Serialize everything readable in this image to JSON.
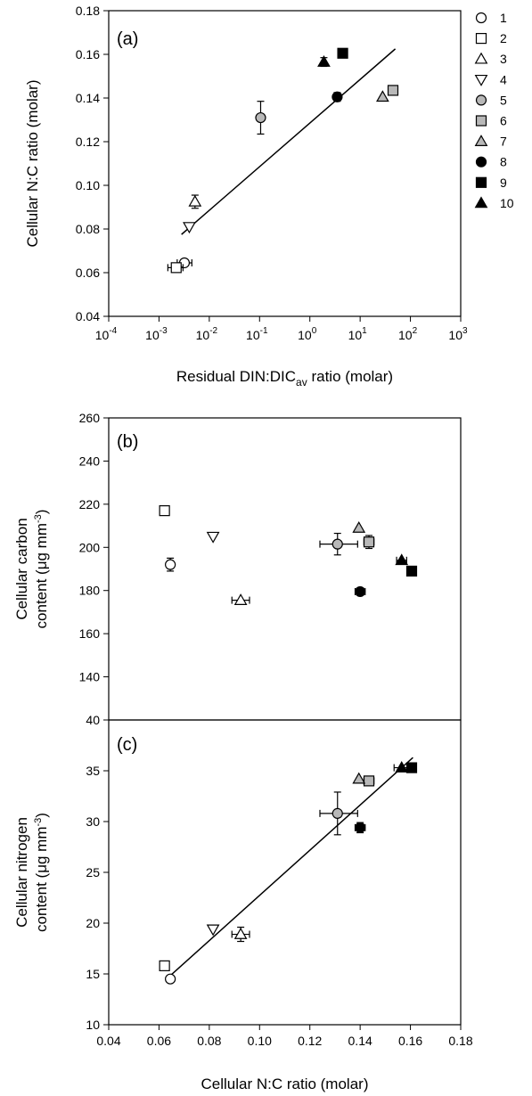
{
  "chart_data": [
    {
      "type": "scatter",
      "panel_label": "(a)",
      "x_scale": "log",
      "xlabel": "Residual DIN:DIC",
      "xlabel_subscript": "av",
      "xlabel_suffix": " ratio (molar)",
      "ylabel": "Cellular N:C ratio (molar)",
      "xlim": [
        0.0001,
        1000
      ],
      "ylim": [
        0.04,
        0.18
      ],
      "x_ticks": [
        0.0001,
        0.001,
        0.01,
        0.1,
        1,
        10,
        100,
        1000
      ],
      "x_tick_base": "10",
      "x_tick_exponents": [
        "-4",
        "-3",
        "-2",
        "-1",
        "0",
        "1",
        "2",
        "3"
      ],
      "y_ticks": [
        0.04,
        0.06,
        0.08,
        0.1,
        0.12,
        0.14,
        0.16,
        0.18
      ],
      "y_tick_labels": [
        "0.04",
        "0.06",
        "0.08",
        "0.10",
        "0.12",
        "0.14",
        "0.16",
        "0.18"
      ],
      "points": [
        {
          "id": "1",
          "x": 0.0032,
          "y": 0.0645,
          "xerr": [
            0.0023,
            0.0045
          ],
          "yerr": null
        },
        {
          "id": "2",
          "x": 0.0022,
          "y": 0.0623,
          "xerr": [
            0.0015,
            0.003
          ],
          "yerr": null
        },
        {
          "id": "3",
          "x": 0.0052,
          "y": 0.0925,
          "xerr": null,
          "yerr": [
            0.0895,
            0.0955
          ]
        },
        {
          "id": "4",
          "x": 0.004,
          "y": 0.081,
          "xerr": null,
          "yerr": null
        },
        {
          "id": "5",
          "x": 0.105,
          "y": 0.131,
          "xerr": null,
          "yerr": [
            0.1235,
            0.1385
          ]
        },
        {
          "id": "6",
          "x": 45,
          "y": 0.1435,
          "xerr": null,
          "yerr": null
        },
        {
          "id": "7",
          "x": 28,
          "y": 0.1405,
          "xerr": null,
          "yerr": null
        },
        {
          "id": "8",
          "x": 3.5,
          "y": 0.1405,
          "xerr": null,
          "yerr": [
            0.1385,
            0.1425
          ]
        },
        {
          "id": "9",
          "x": 4.5,
          "y": 0.1605,
          "xerr": null,
          "yerr": null
        },
        {
          "id": "10",
          "x": 1.9,
          "y": 0.1565,
          "xerr": null,
          "yerr": [
            0.1545,
            0.1585
          ]
        }
      ],
      "regression": {
        "x": [
          0.0028,
          50
        ],
        "y": 0.0775,
        "y_end": 0.1625
      }
    },
    {
      "type": "scatter",
      "panel_label": "(b)",
      "ylabel_line1": "Cellular carbon",
      "ylabel_line2_prefix": "content (μg mm",
      "ylabel_line2_sup": "-3",
      "ylabel_line2_suffix": ")",
      "xlim": [
        0.04,
        0.18
      ],
      "ylim": [
        120,
        260
      ],
      "y_ticks": [
        120,
        140,
        160,
        180,
        200,
        220,
        240,
        260
      ],
      "y_tick_labels": [
        "",
        "140",
        "160",
        "180",
        "200",
        "220",
        "240",
        "260"
      ],
      "points": [
        {
          "id": "1",
          "x": 0.0645,
          "y": 192,
          "xerr": null,
          "yerr": [
            189,
            195
          ]
        },
        {
          "id": "2",
          "x": 0.0622,
          "y": 217,
          "xerr": null,
          "yerr": null
        },
        {
          "id": "3",
          "x": 0.0925,
          "y": 175.5,
          "xerr": [
            0.089,
            0.096
          ],
          "yerr": null
        },
        {
          "id": "4",
          "x": 0.0815,
          "y": 205,
          "xerr": null,
          "yerr": null
        },
        {
          "id": "5",
          "x": 0.131,
          "y": 201.5,
          "xerr": [
            0.124,
            0.139
          ],
          "yerr": [
            196.5,
            206.5
          ]
        },
        {
          "id": "6",
          "x": 0.1435,
          "y": 202.5,
          "xerr": [
            0.1415,
            0.1455
          ],
          "yerr": [
            199.5,
            205.5
          ]
        },
        {
          "id": "7",
          "x": 0.1395,
          "y": 209,
          "xerr": null,
          "yerr": null
        },
        {
          "id": "8",
          "x": 0.14,
          "y": 179.5,
          "xerr": [
            0.138,
            0.142
          ],
          "yerr": null
        },
        {
          "id": "9",
          "x": 0.1605,
          "y": 189,
          "xerr": null,
          "yerr": null
        },
        {
          "id": "10",
          "x": 0.1565,
          "y": 194,
          "xerr": [
            0.1545,
            0.1585
          ],
          "yerr": null
        }
      ]
    },
    {
      "type": "scatter",
      "panel_label": "(c)",
      "xlabel": "Cellular N:C ratio (molar)",
      "ylabel_line1": "Cellular nitrogen",
      "ylabel_line2_prefix": "content (μg mm",
      "ylabel_line2_sup": "-3",
      "ylabel_line2_suffix": ")",
      "xlim": [
        0.04,
        0.18
      ],
      "ylim": [
        10,
        40
      ],
      "x_ticks": [
        0.04,
        0.06,
        0.08,
        0.1,
        0.12,
        0.14,
        0.16,
        0.18
      ],
      "x_tick_labels": [
        "0.04",
        "0.06",
        "0.08",
        "0.10",
        "0.12",
        "0.14",
        "0.16",
        "0.18"
      ],
      "y_ticks": [
        10,
        15,
        20,
        25,
        30,
        35,
        40
      ],
      "y_tick_labels": [
        "10",
        "15",
        "20",
        "25",
        "30",
        "35",
        "40"
      ],
      "points": [
        {
          "id": "1",
          "x": 0.0645,
          "y": 14.5,
          "xerr": null,
          "yerr": null
        },
        {
          "id": "2",
          "x": 0.0622,
          "y": 15.8,
          "xerr": null,
          "yerr": null
        },
        {
          "id": "3",
          "x": 0.0925,
          "y": 18.9,
          "xerr": [
            0.089,
            0.096
          ],
          "yerr": [
            18.2,
            19.6
          ]
        },
        {
          "id": "4",
          "x": 0.0815,
          "y": 19.4,
          "xerr": null,
          "yerr": null
        },
        {
          "id": "5",
          "x": 0.131,
          "y": 30.8,
          "xerr": [
            0.124,
            0.139
          ],
          "yerr": [
            28.7,
            32.9
          ]
        },
        {
          "id": "6",
          "x": 0.1435,
          "y": 34.0,
          "xerr": [
            0.1415,
            0.1455
          ],
          "yerr": null
        },
        {
          "id": "7",
          "x": 0.1395,
          "y": 34.2,
          "xerr": null,
          "yerr": null
        },
        {
          "id": "8",
          "x": 0.14,
          "y": 29.4,
          "xerr": [
            0.138,
            0.142
          ],
          "yerr": [
            28.9,
            29.9
          ]
        },
        {
          "id": "9",
          "x": 0.1605,
          "y": 35.3,
          "xerr": null,
          "yerr": null
        },
        {
          "id": "10",
          "x": 0.1565,
          "y": 35.3,
          "xerr": [
            0.1535,
            0.1595
          ],
          "yerr": null
        }
      ],
      "regression": {
        "x": [
          0.063,
          0.161
        ],
        "y": 14.5,
        "y_end": 36.3
      }
    }
  ],
  "legend": {
    "items": [
      {
        "id": "1",
        "label": "1",
        "shape": "circle",
        "fill": "open"
      },
      {
        "id": "2",
        "label": "2",
        "shape": "square",
        "fill": "open"
      },
      {
        "id": "3",
        "label": "3",
        "shape": "triangle-up",
        "fill": "open"
      },
      {
        "id": "4",
        "label": "4",
        "shape": "triangle-down",
        "fill": "open"
      },
      {
        "id": "5",
        "label": "5",
        "shape": "circle",
        "fill": "gray"
      },
      {
        "id": "6",
        "label": "6",
        "shape": "square",
        "fill": "gray"
      },
      {
        "id": "7",
        "label": "7",
        "shape": "triangle-up",
        "fill": "gray"
      },
      {
        "id": "8",
        "label": "8",
        "shape": "circle",
        "fill": "solid"
      },
      {
        "id": "9",
        "label": "9",
        "shape": "square",
        "fill": "solid"
      },
      {
        "id": "10",
        "label": "10",
        "shape": "triangle-up",
        "fill": "solid"
      }
    ],
    "placement": "right of panel (a)"
  },
  "colors": {
    "open": "#ffffff",
    "gray": "#b8b8b8",
    "solid": "#000000",
    "stroke": "#000000"
  }
}
